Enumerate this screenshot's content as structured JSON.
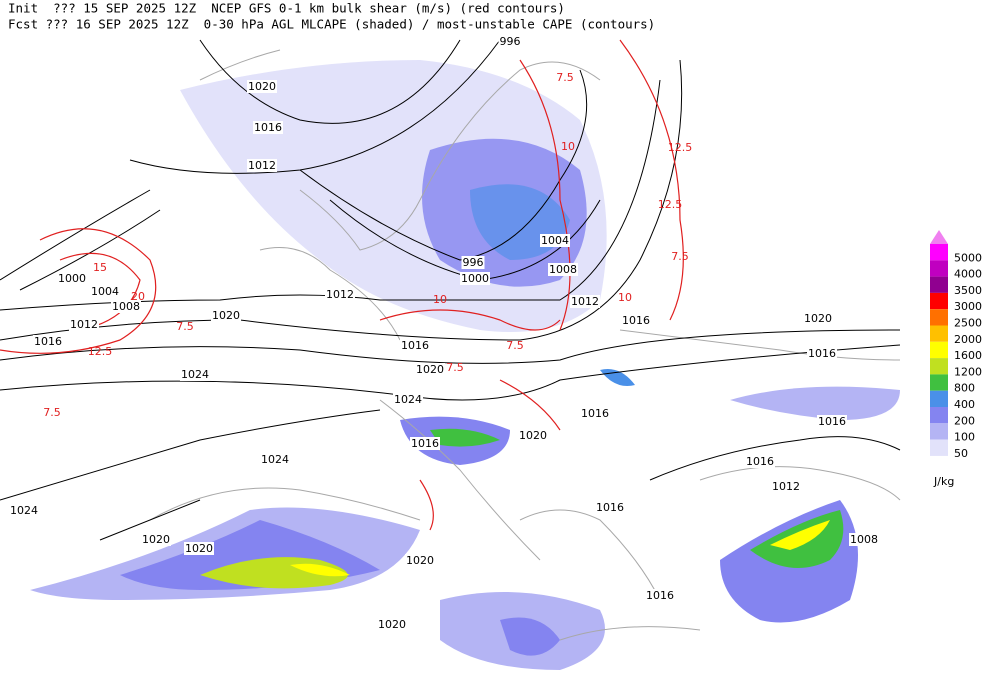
{
  "header": {
    "line1": "Init  ??? 15 SEP 2025 12Z  NCEP GFS 0-1 km bulk shear (m/s) (red contours)",
    "line2": "Fcst ??? 16 SEP 2025 12Z  0-30 hPa AGL MLCAPE (shaded) / most-unstable CAPE (contours)"
  },
  "legend": {
    "unit": "J/kg",
    "items": [
      {
        "label": "5000",
        "color": "#ff00ff"
      },
      {
        "label": "4000",
        "color": "#c000c0"
      },
      {
        "label": "3500",
        "color": "#900090"
      },
      {
        "label": "3000",
        "color": "#ff0000"
      },
      {
        "label": "2500",
        "color": "#ff7000"
      },
      {
        "label": "2000",
        "color": "#ffc000"
      },
      {
        "label": "1600",
        "color": "#ffff00"
      },
      {
        "label": "1200",
        "color": "#c0e020"
      },
      {
        "label": "800",
        "color": "#40c040"
      },
      {
        "label": "400",
        "color": "#4a90e8"
      },
      {
        "label": "200",
        "color": "#8484f0"
      },
      {
        "label": "100",
        "color": "#b4b4f4"
      },
      {
        "label": "50",
        "color": "#e2e2fa"
      }
    ],
    "top_color": "#f080f0"
  },
  "isobar_labels": [
    "996",
    "1020",
    "1016",
    "1012",
    "1004",
    "996",
    "1000",
    "1008",
    "1000",
    "1004",
    "1008",
    "1012",
    "1016",
    "1012",
    "1012",
    "1020",
    "1016",
    "1020",
    "1016",
    "1020",
    "1024",
    "1016",
    "1024",
    "1016",
    "1020",
    "1016",
    "1016",
    "1024",
    "1016",
    "1012",
    "1024",
    "1016",
    "1020",
    "1020",
    "1008",
    "1020",
    "1016",
    "1020"
  ],
  "shear_labels": [
    "7.5",
    "10",
    "12.5",
    "15",
    "20",
    "7.5",
    "12.5",
    "7.5",
    "12.5",
    "7.5",
    "10",
    "7.5",
    "7.5",
    "10"
  ]
}
